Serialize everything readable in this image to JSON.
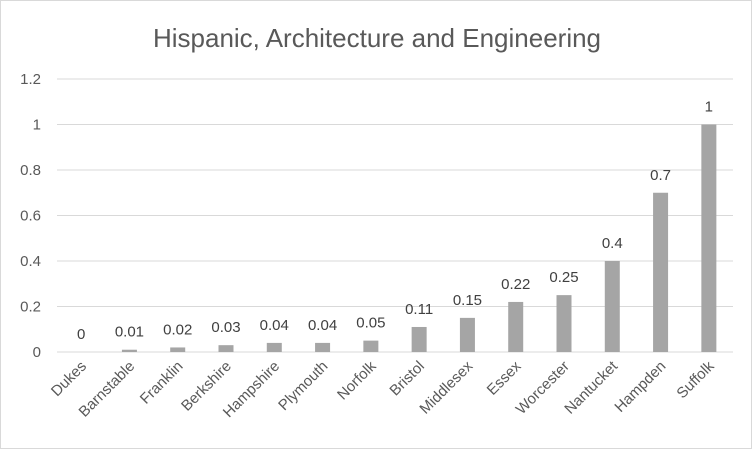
{
  "chart_data": {
    "type": "bar",
    "title": "Hispanic, Architecture and Engineering",
    "xlabel": "",
    "ylabel": "",
    "categories": [
      "Dukes",
      "Barnstable",
      "Franklin",
      "Berkshire",
      "Hampshire",
      "Plymouth",
      "Norfolk",
      "Bristol",
      "Middlesex",
      "Essex",
      "Worcester",
      "Nantucket",
      "Hampden",
      "Suffolk"
    ],
    "values": [
      0,
      0.01,
      0.02,
      0.03,
      0.04,
      0.04,
      0.05,
      0.11,
      0.15,
      0.22,
      0.25,
      0.4,
      0.7,
      1
    ],
    "data_labels": [
      "0",
      "0.01",
      "0.02",
      "0.03",
      "0.04",
      "0.04",
      "0.05",
      "0.11",
      "0.15",
      "0.22",
      "0.25",
      "0.4",
      "0.7",
      "1"
    ],
    "ylim": [
      0,
      1.2
    ],
    "yticks": [
      0,
      0.2,
      0.4,
      0.6,
      0.8,
      1,
      1.2
    ],
    "ytick_labels": [
      "0",
      "0.2",
      "0.4",
      "0.6",
      "0.8",
      "1",
      "1.2"
    ],
    "grid": true,
    "legend": "none",
    "bar_color": "#a5a5a5",
    "grid_color": "#d9d9d9"
  }
}
